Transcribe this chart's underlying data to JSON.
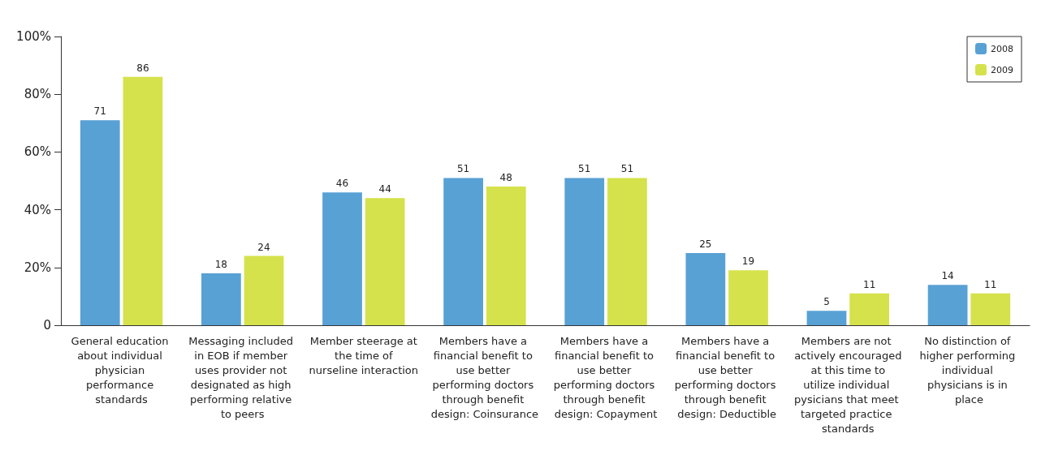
{
  "chart_data": {
    "type": "bar",
    "categories": [
      "General education about individual physician performance standards",
      "Messaging included in EOB if member uses provider not designated as high performing relative to peers",
      "Member steerage at the time of nurseline interaction",
      "Members have a financial benefit to use better performing doctors through benefit design: Coinsurance",
      "Members have a financial benefit to use better performing doctors through benefit design: Copayment",
      "Members have a financial benefit to use better performing doctors through benefit design: Deductible",
      "Members are not actively encouraged at this time to utilize individual pysicians that meet targeted practice standards",
      "No distinction of higher performing individual physicians is in place"
    ],
    "series": [
      {
        "name": "2008",
        "color": "#58a1d5",
        "values": [
          71,
          18,
          46,
          51,
          51,
          25,
          5,
          14
        ]
      },
      {
        "name": "2009",
        "color": "#d5e24b",
        "values": [
          86,
          24,
          44,
          48,
          51,
          19,
          11,
          11
        ]
      }
    ],
    "ylim": [
      0,
      100
    ],
    "yticks": [
      0,
      {
        "value": 20,
        "label": "20%"
      },
      {
        "value": 40,
        "label": "40%"
      },
      {
        "value": 60,
        "label": "60%"
      },
      {
        "value": 80,
        "label": "80%"
      },
      {
        "value": 100,
        "label": "100%"
      }
    ],
    "data_labels": true,
    "grid": false,
    "legend": "top right"
  }
}
